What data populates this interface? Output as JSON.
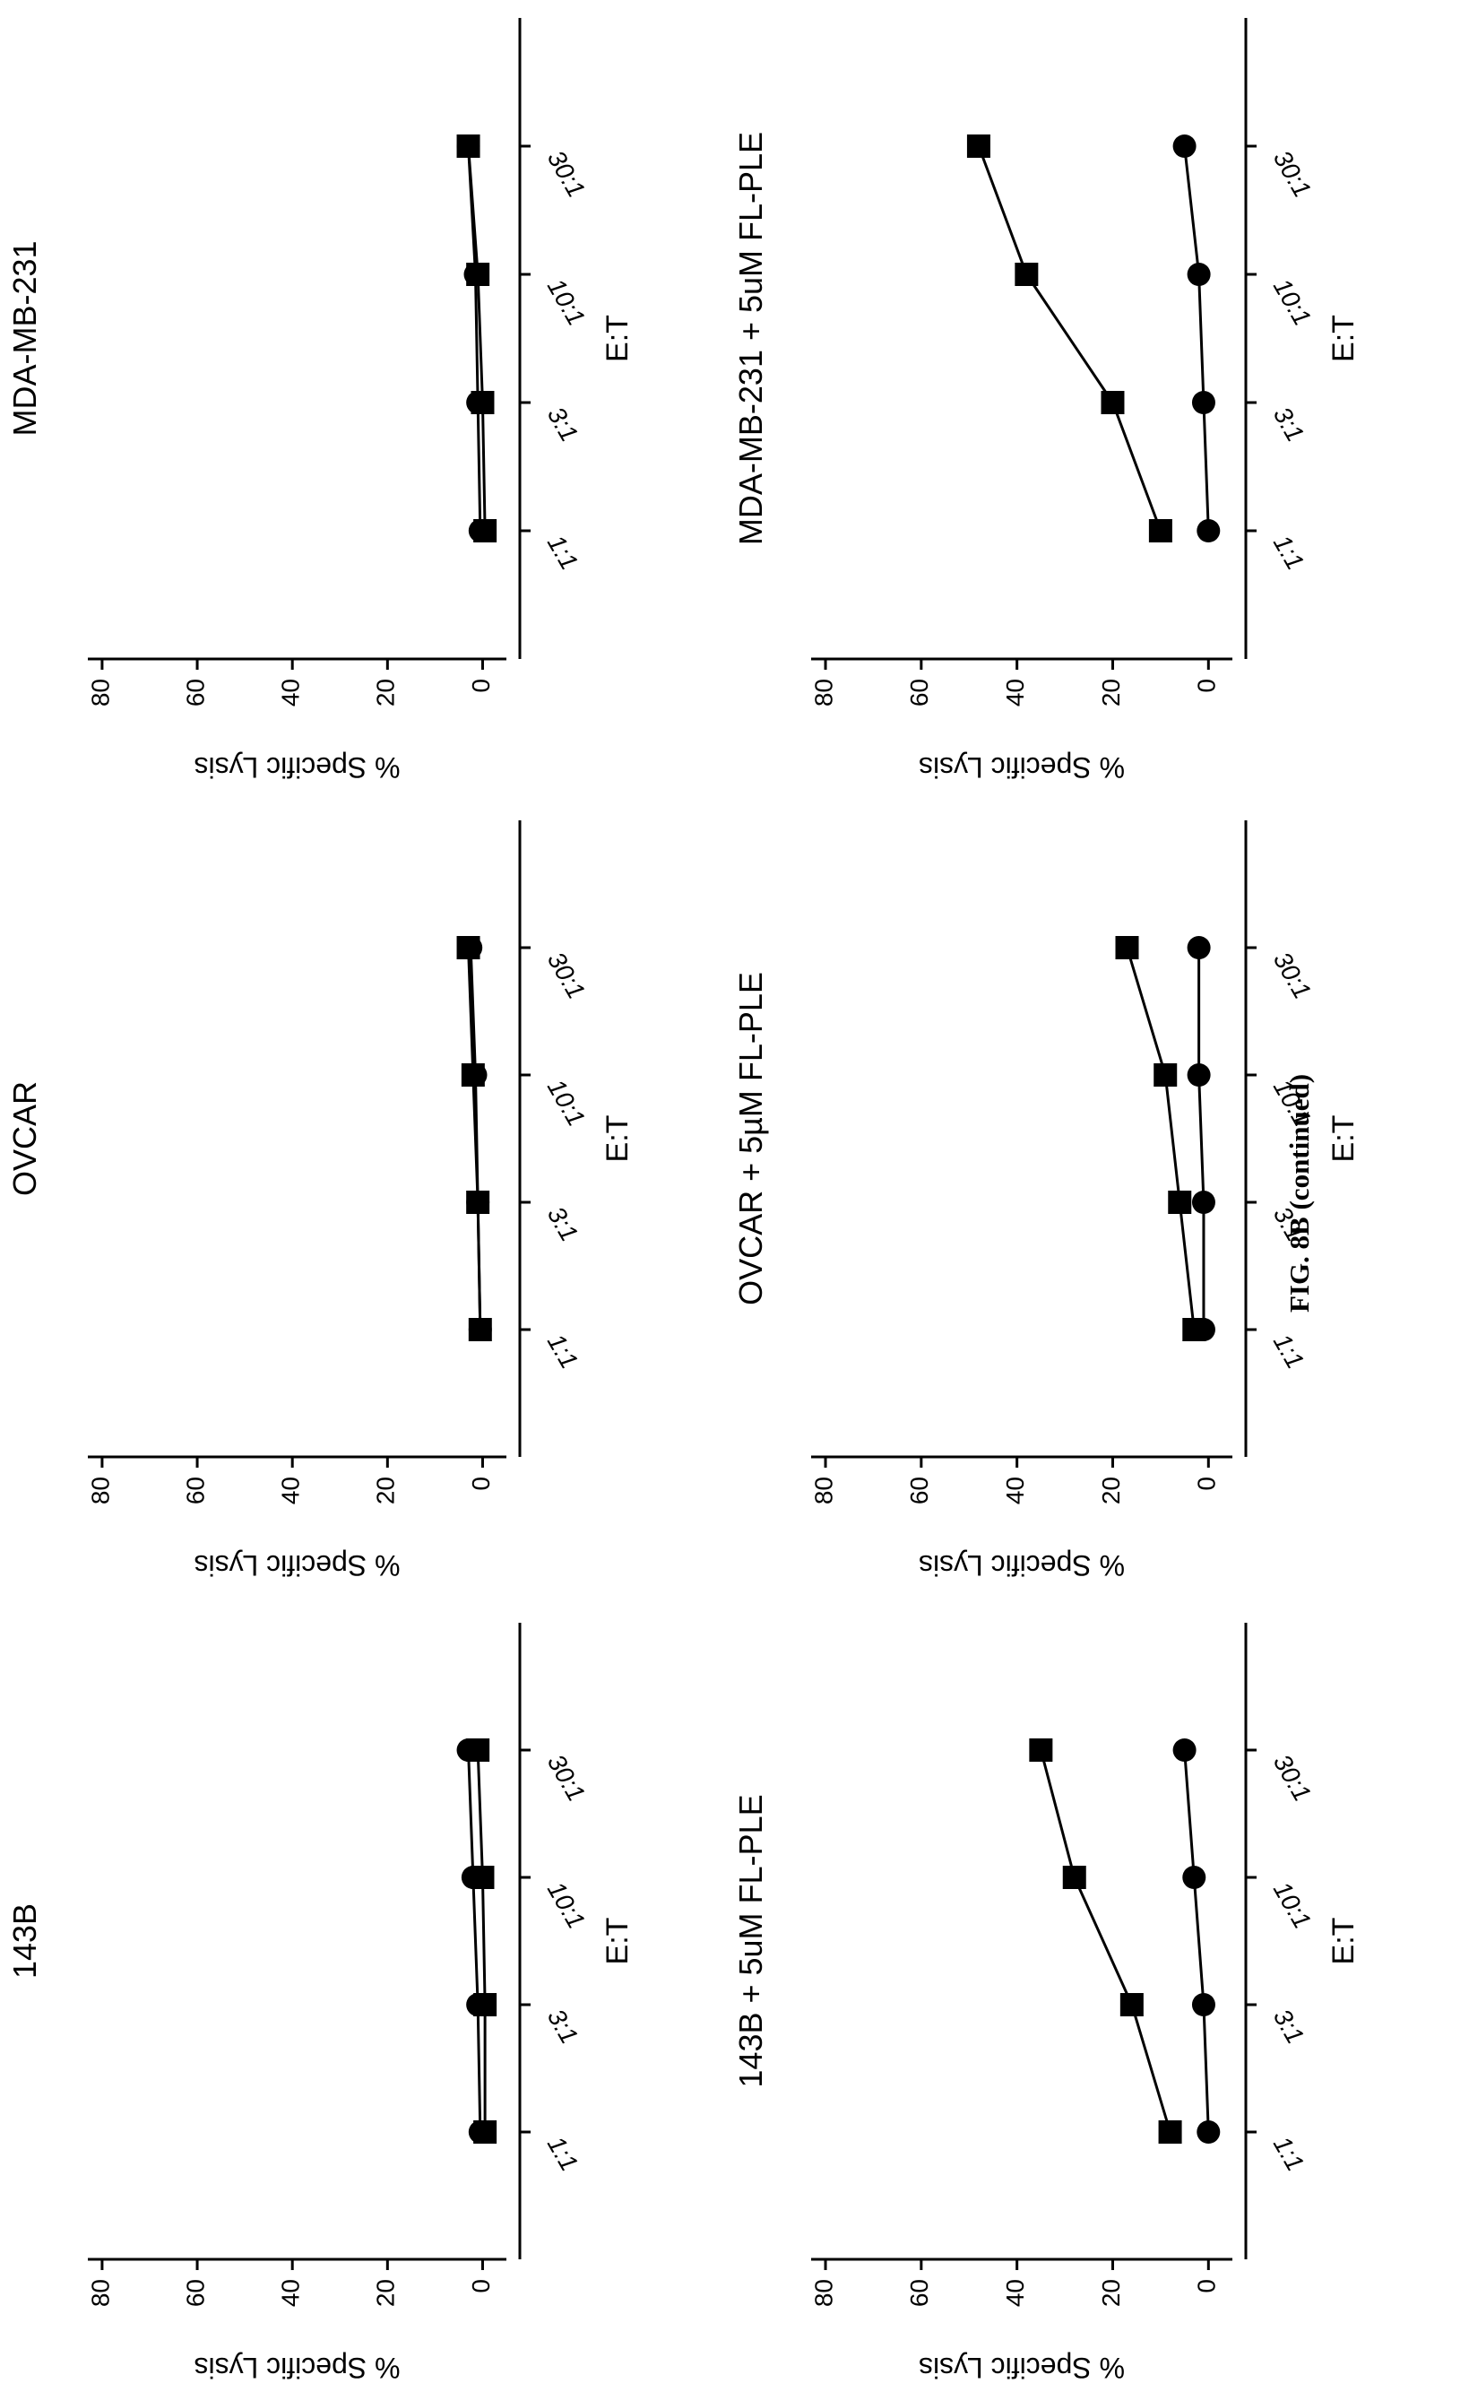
{
  "figure_caption": "FIG. 8B (continued)",
  "chart_data": [
    {
      "type": "line",
      "title": "MDA-MB-231",
      "xlabel": "E:T",
      "ylabel": "% Specific Lysis",
      "categories": [
        "30:1",
        "10:1",
        "3:1",
        "1:1"
      ],
      "yticks": [
        "0",
        "20",
        "40",
        "60",
        "80"
      ],
      "ylim": [
        -5,
        83
      ],
      "series": [
        {
          "marker": "circle",
          "values": [
            3,
            1.5,
            1,
            0.5
          ]
        },
        {
          "marker": "square",
          "values": [
            3,
            1,
            0,
            -0.5
          ]
        }
      ]
    },
    {
      "type": "line",
      "title": "OVCAR",
      "xlabel": "E:T",
      "ylabel": "% Specific Lysis",
      "categories": [
        "30:1",
        "10:1",
        "3:1",
        "1:1"
      ],
      "yticks": [
        "0",
        "20",
        "40",
        "60",
        "80"
      ],
      "ylim": [
        -5,
        83
      ],
      "series": [
        {
          "marker": "circle",
          "values": [
            2.5,
            1.5,
            1,
            0.5
          ]
        },
        {
          "marker": "square",
          "values": [
            3,
            2,
            1,
            0.5
          ]
        }
      ]
    },
    {
      "type": "line",
      "title": "143B",
      "xlabel": "E:T",
      "ylabel": "% Specific Lysis",
      "categories": [
        "30:1",
        "10:1",
        "3:1",
        "1:1"
      ],
      "yticks": [
        "0",
        "20",
        "40",
        "60",
        "80"
      ],
      "ylim": [
        -5,
        83
      ],
      "series": [
        {
          "marker": "circle",
          "values": [
            3,
            2,
            1,
            0.5
          ]
        },
        {
          "marker": "square",
          "values": [
            1,
            0,
            -0.5,
            -0.5
          ]
        }
      ]
    },
    {
      "type": "line",
      "title": "MDA-MB-231 + 5uM FL-PLE",
      "xlabel": "E:T",
      "ylabel": "% Specific Lysis",
      "categories": [
        "30:1",
        "10:1",
        "3:1",
        "1:1"
      ],
      "yticks": [
        "0",
        "20",
        "40",
        "60",
        "80"
      ],
      "ylim": [
        -5,
        83
      ],
      "series": [
        {
          "marker": "circle",
          "values": [
            5,
            2,
            1,
            0
          ]
        },
        {
          "marker": "square",
          "values": [
            48,
            38,
            20,
            10
          ]
        }
      ]
    },
    {
      "type": "line",
      "title": "OVCAR + 5µM FL-PLE",
      "xlabel": "E:T",
      "ylabel": "% Specific Lysis",
      "categories": [
        "30:1",
        "10:1",
        "3:1",
        "1:1"
      ],
      "yticks": [
        "0",
        "20",
        "40",
        "60",
        "80"
      ],
      "ylim": [
        -5,
        83
      ],
      "series": [
        {
          "marker": "circle",
          "values": [
            2,
            2,
            1,
            1
          ]
        },
        {
          "marker": "square",
          "values": [
            17,
            9,
            6,
            3
          ]
        }
      ]
    },
    {
      "type": "line",
      "title": "143B + 5uM FL-PLE",
      "xlabel": "E:T",
      "ylabel": "% Specific Lysis",
      "categories": [
        "30:1",
        "10:1",
        "3:1",
        "1:1"
      ],
      "yticks": [
        "0",
        "20",
        "40",
        "60",
        "80"
      ],
      "ylim": [
        -5,
        83
      ],
      "series": [
        {
          "marker": "circle",
          "values": [
            5,
            3,
            1,
            0
          ]
        },
        {
          "marker": "square",
          "values": [
            35,
            28,
            16,
            8
          ]
        }
      ]
    }
  ]
}
